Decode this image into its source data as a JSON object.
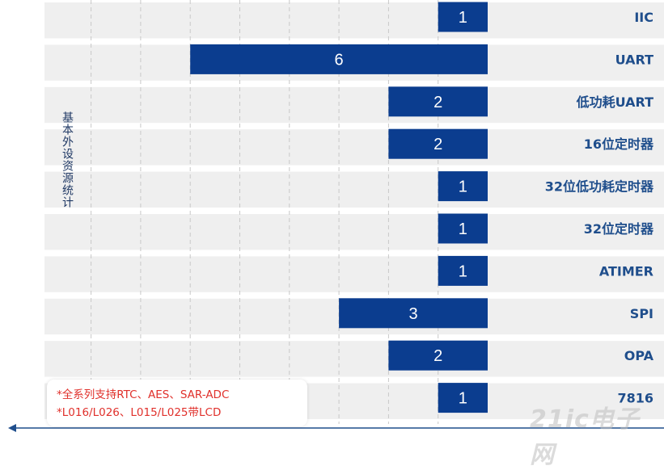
{
  "chart_data": {
    "type": "bar",
    "orientation": "horizontal",
    "y_axis_label": "基本外设资源统计",
    "categories": [
      "IIC",
      "UART",
      "低功耗UART",
      "16位定时器",
      "32位低功耗定时器",
      "32位定时器",
      "ATIMER",
      "SPI",
      "OPA",
      "7816"
    ],
    "values": [
      1,
      6,
      2,
      2,
      1,
      1,
      1,
      3,
      2,
      1
    ],
    "xlim": [
      0,
      10
    ],
    "bar_direction": "right-to-left",
    "grid": "dashed-vertical",
    "colors": {
      "bar": "#0b3d8f",
      "bar_label": "#ffffff",
      "category_label": "#1f4e8c",
      "band": "#efefef"
    }
  },
  "notes": [
    "*全系列支持RTC、AES、SAR-ADC",
    "*L016/L026、L015/L025带LCD"
  ],
  "watermark": "21ic电子网"
}
